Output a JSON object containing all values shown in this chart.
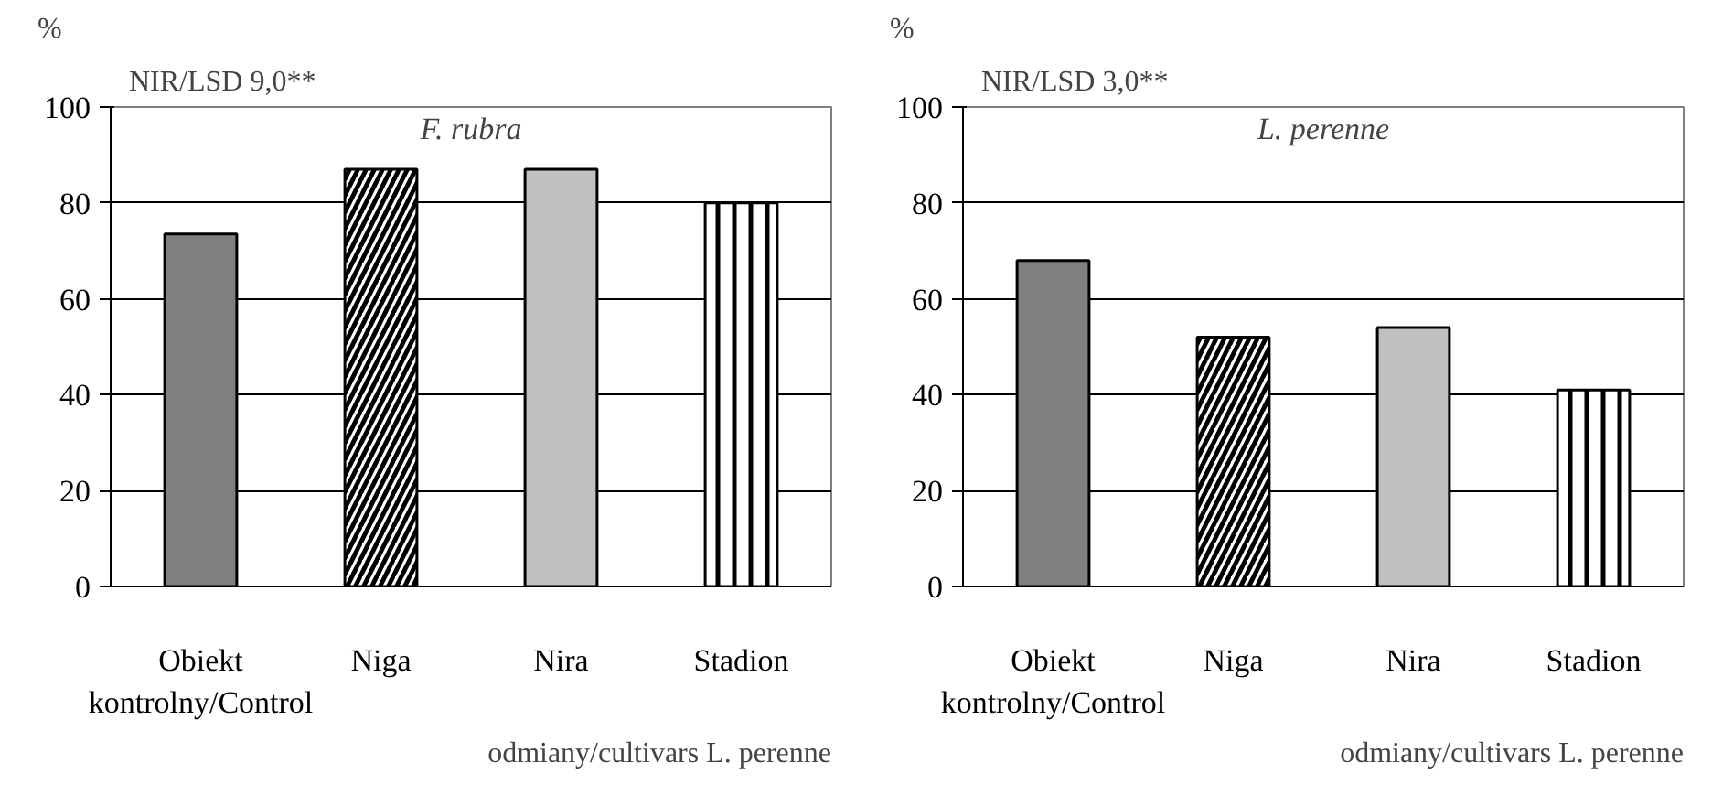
{
  "chart_data": [
    {
      "type": "bar",
      "title": "F. rubra",
      "ylabel": "%",
      "xlabel": "odmiany/cultivars L. perenne",
      "annotations": [
        "NIR/LSD 9,0**"
      ],
      "categories": [
        "Obiekt\nkontrolny/Control",
        "Niga",
        "Nira",
        "Stadion"
      ],
      "values": [
        73.5,
        87,
        87,
        80
      ],
      "colors": [
        "#808080",
        "#ffffff",
        "#c0c0c0",
        "#ffffff"
      ],
      "ylim": [
        0,
        100
      ],
      "yticks": [
        0,
        20,
        40,
        60,
        80,
        100
      ],
      "grid": "y"
    },
    {
      "type": "bar",
      "title": "L. perenne",
      "ylabel": "%",
      "xlabel": "odmiany/cultivars L. perenne",
      "annotations": [
        "NIR/LSD 3,0**"
      ],
      "categories": [
        "Obiekt\nkontrolny/Control",
        "Niga",
        "Nira",
        "Stadion"
      ],
      "values": [
        68,
        52,
        54,
        41
      ],
      "colors": [
        "#808080",
        "#ffffff",
        "#c0c0c0",
        "#ffffff"
      ],
      "ylim": [
        0,
        100
      ],
      "yticks": [
        0,
        20,
        40,
        60,
        80,
        100
      ],
      "grid": "y"
    }
  ]
}
